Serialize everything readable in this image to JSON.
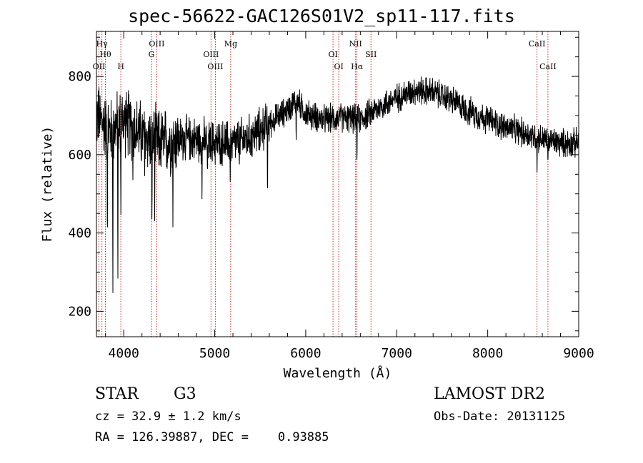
{
  "chart_data": {
    "type": "line",
    "title": "spec-56622-GAC126S01V2_sp11-117.fits",
    "xlabel": "Wavelength (Å)",
    "ylabel": "Flux (relative)",
    "xlim": [
      3700,
      9000
    ],
    "ylim": [
      135,
      915
    ],
    "xticks": [
      4000,
      5000,
      6000,
      7000,
      8000,
      9000
    ],
    "yticks": [
      200,
      400,
      600,
      800
    ],
    "grid": false,
    "continuum": [
      [
        3700,
        700
      ],
      [
        3850,
        660
      ],
      [
        4000,
        690
      ],
      [
        4200,
        650
      ],
      [
        4400,
        630
      ],
      [
        4600,
        640
      ],
      [
        4800,
        640
      ],
      [
        5000,
        630
      ],
      [
        5200,
        630
      ],
      [
        5400,
        645
      ],
      [
        5600,
        680
      ],
      [
        5800,
        715
      ],
      [
        5900,
        740
      ],
      [
        6000,
        705
      ],
      [
        6200,
        690
      ],
      [
        6400,
        695
      ],
      [
        6600,
        690
      ],
      [
        6800,
        720
      ],
      [
        7000,
        745
      ],
      [
        7200,
        765
      ],
      [
        7400,
        760
      ],
      [
        7600,
        740
      ],
      [
        7800,
        710
      ],
      [
        8000,
        690
      ],
      [
        8200,
        670
      ],
      [
        8400,
        655
      ],
      [
        8600,
        640
      ],
      [
        8800,
        630
      ],
      [
        9000,
        630
      ]
    ],
    "absorption_features": [
      [
        3820,
        330
      ],
      [
        3880,
        200
      ],
      [
        3935,
        240
      ],
      [
        3968,
        420
      ],
      [
        4100,
        520
      ],
      [
        4230,
        540
      ],
      [
        4310,
        400
      ],
      [
        4340,
        420
      ],
      [
        4540,
        390
      ],
      [
        4860,
        460
      ],
      [
        4920,
        540
      ],
      [
        5170,
        520
      ],
      [
        5270,
        560
      ],
      [
        5580,
        460
      ],
      [
        5895,
        620
      ],
      [
        6563,
        560
      ],
      [
        8542,
        550
      ],
      [
        8662,
        570
      ]
    ],
    "spectral_lines": [
      {
        "label": "OII",
        "wavelength": 3727
      },
      {
        "label": "Hγ",
        "wavelength": 3760
      },
      {
        "label": "Hθ",
        "wavelength": 3798
      },
      {
        "label": "H",
        "wavelength": 3968
      },
      {
        "label": "OIII",
        "wavelength": 4363
      },
      {
        "label": "G",
        "wavelength": 4305
      },
      {
        "label": "OIII",
        "wavelength": 4959
      },
      {
        "label": "OIII",
        "wavelength": 5007
      },
      {
        "label": "Mg",
        "wavelength": 5175
      },
      {
        "label": "OI",
        "wavelength": 6300
      },
      {
        "label": "OI",
        "wavelength": 6363
      },
      {
        "label": "NII",
        "wavelength": 6548
      },
      {
        "label": "Hα",
        "wavelength": 6563
      },
      {
        "label": "SII",
        "wavelength": 6717
      },
      {
        "label": "CaII",
        "wavelength": 8542
      },
      {
        "label": "CaII",
        "wavelength": 8662
      }
    ]
  },
  "info": {
    "class": "STAR",
    "subclass": "G3",
    "survey": "LAMOST DR2",
    "cz": "cz = 32.9 ± 1.2 km/s",
    "obs_date": "Obs-Date: 20131125",
    "radec": "RA = 126.39887, DEC =    0.93885"
  }
}
